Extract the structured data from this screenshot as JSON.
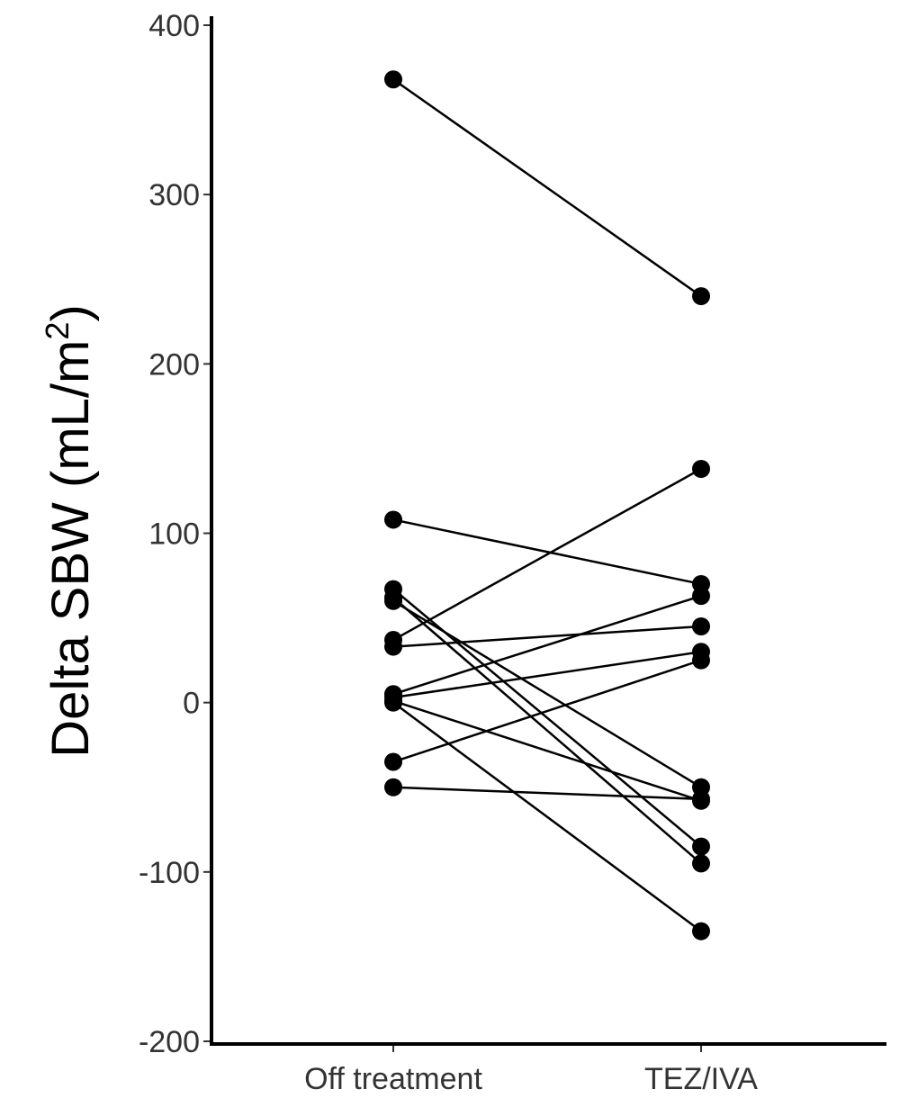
{
  "chart_data": {
    "type": "line",
    "title": "",
    "xlabel": "",
    "ylabel": "Delta SBW (mL/m",
    "ylabel_superscript": "2",
    "ylabel_close": ")",
    "categories": [
      "Off treatment",
      "TEZ/IVA"
    ],
    "ylim": [
      -200,
      400
    ],
    "yticks": [
      -200,
      -100,
      0,
      100,
      200,
      300,
      400
    ],
    "ytick_labels": [
      "-200",
      "-100",
      "0",
      "100",
      "200",
      "300",
      "400"
    ],
    "grid": false,
    "legend": "none",
    "point_color": "#000000",
    "line_color": "#000000",
    "series": [
      {
        "values": [
          368,
          240
        ]
      },
      {
        "values": [
          108,
          70
        ]
      },
      {
        "values": [
          67,
          -85
        ]
      },
      {
        "values": [
          62,
          -95
        ]
      },
      {
        "values": [
          60,
          -50
        ]
      },
      {
        "values": [
          37,
          138
        ]
      },
      {
        "values": [
          33,
          45
        ]
      },
      {
        "values": [
          5,
          63
        ]
      },
      {
        "values": [
          3,
          30
        ]
      },
      {
        "values": [
          1,
          -58
        ]
      },
      {
        "values": [
          0,
          -135
        ]
      },
      {
        "values": [
          -35,
          25
        ]
      },
      {
        "values": [
          -50,
          -57
        ]
      }
    ]
  }
}
